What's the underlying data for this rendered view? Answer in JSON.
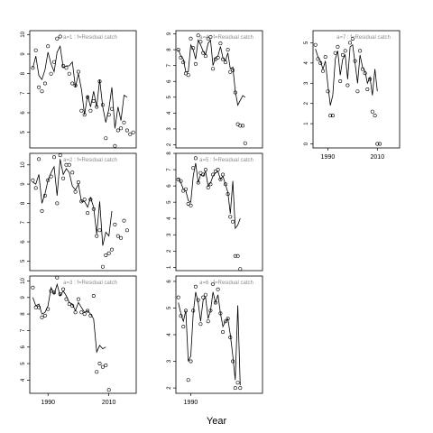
{
  "xlabel": "Year",
  "colors": {
    "axis": "#000000",
    "series": "#000000",
    "annotation": "#8c8c8c"
  },
  "chart_data": [
    {
      "type": "scatter",
      "label": "a=1 : f=Residual catch",
      "xlim": [
        1984,
        2019
      ],
      "ylim": [
        4.2,
        10.2
      ],
      "yticks": [
        5,
        6,
        7,
        8,
        9,
        10
      ],
      "xticks": [
        1990,
        2010
      ],
      "x": [
        1985,
        1986,
        1987,
        1988,
        1989,
        1990,
        1991,
        1992,
        1993,
        1994,
        1995,
        1996,
        1997,
        1998,
        1999,
        2000,
        2001,
        2002,
        2003,
        2004,
        2005,
        2006,
        2007,
        2008,
        2009,
        2010,
        2011,
        2012,
        2013,
        2014,
        2015,
        2016,
        2017,
        2018
      ],
      "points": [
        8.3,
        9.2,
        7.3,
        7.1,
        7.5,
        9.4,
        8.0,
        8.6,
        9.8,
        9.9,
        8.4,
        8.3,
        8.0,
        7.5,
        7.4,
        8.1,
        6.1,
        5.9,
        6.8,
        6.1,
        6.6,
        6.3,
        7.6,
        6.4,
        4.7,
        5.9,
        6.2,
        4.3,
        5.1,
        5.2,
        5.5,
        5.1,
        4.9,
        5.0
      ],
      "fitted": [
        8.3,
        8.9,
        7.9,
        7.7,
        8.2,
        9.1,
        8.5,
        8.1,
        9.1,
        9.4,
        8.3,
        8.4,
        8.4,
        8.6,
        7.3,
        8.0,
        7.2,
        5.9,
        6.9,
        6.3,
        7.1,
        6.3,
        7.7,
        6.3,
        5.5,
        6.2,
        7.3,
        5.2,
        6.3,
        5.6,
        6.9,
        6.8,
        null,
        null
      ]
    },
    {
      "type": "scatter",
      "label": "a=2 : f=Residual catch",
      "xlim": [
        1984,
        2019
      ],
      "ylim": [
        4.5,
        10.6
      ],
      "yticks": [
        5,
        6,
        7,
        8,
        9,
        10
      ],
      "xticks": [
        1990,
        2010
      ],
      "x": [
        1985,
        1986,
        1987,
        1988,
        1989,
        1990,
        1991,
        1992,
        1993,
        1994,
        1995,
        1996,
        1997,
        1998,
        1999,
        2000,
        2001,
        2002,
        2003,
        2004,
        2005,
        2006,
        2007,
        2008,
        2009,
        2010,
        2011,
        2012,
        2013,
        2014,
        2015,
        2016,
        2017,
        2018
      ],
      "points": [
        9.2,
        8.8,
        10.3,
        7.6,
        8.4,
        9.2,
        9.4,
        10.4,
        8.0,
        10.5,
        9.3,
        10.0,
        10.0,
        9.6,
        8.6,
        9.1,
        8.1,
        8.2,
        7.5,
        8.2,
        7.7,
        6.3,
        6.6,
        4.7,
        5.3,
        5.4,
        5.6,
        6.9,
        6.3,
        6.2,
        7.1,
        6.6,
        null,
        null
      ],
      "fitted": [
        9.1,
        9.0,
        9.5,
        8.0,
        8.5,
        9.2,
        9.6,
        9.9,
        8.4,
        10.3,
        9.5,
        9.8,
        9.6,
        8.9,
        8.7,
        9.0,
        8.1,
        8.1,
        7.8,
        8.3,
        7.8,
        6.4,
        8.1,
        5.8,
        6.5,
        6.3,
        7.6,
        null,
        null,
        null,
        null,
        null,
        null,
        null
      ]
    },
    {
      "type": "scatter",
      "label": "a=3 : f=Residual catch",
      "xlim": [
        1984,
        2019
      ],
      "ylim": [
        3.2,
        10.3
      ],
      "yticks": [
        4,
        5,
        6,
        7,
        8,
        9,
        10
      ],
      "xticks": [
        1990,
        2010
      ],
      "x": [
        1985,
        1986,
        1987,
        1988,
        1989,
        1990,
        1991,
        1992,
        1993,
        1994,
        1995,
        1996,
        1997,
        1998,
        1999,
        2000,
        2001,
        2002,
        2003,
        2004,
        2005,
        2006,
        2007,
        2008,
        2009,
        2010,
        2011,
        2012,
        2013,
        2014,
        2015,
        2016,
        2017,
        2018
      ],
      "points": [
        9.6,
        8.4,
        8.4,
        7.8,
        7.9,
        8.3,
        9.4,
        9.3,
        10.2,
        9.2,
        9.5,
        8.9,
        8.6,
        8.5,
        8.1,
        8.9,
        8.1,
        8.0,
        8.2,
        7.9,
        9.1,
        4.5,
        5.0,
        4.8,
        4.9,
        3.4,
        null,
        null,
        null,
        null,
        null,
        null,
        null,
        null
      ],
      "fitted": [
        9.0,
        8.5,
        8.6,
        8.0,
        8.1,
        8.5,
        9.6,
        9.2,
        9.8,
        9.1,
        9.4,
        9.1,
        8.7,
        8.6,
        8.2,
        8.7,
        8.4,
        8.1,
        8.2,
        8.0,
        7.7,
        5.7,
        6.1,
        5.9,
        6.0,
        null,
        null,
        null,
        null,
        null,
        null,
        null,
        null,
        null
      ]
    },
    {
      "type": "scatter",
      "label": "a=4 : f=Residual catch",
      "xlim": [
        1984,
        2019
      ],
      "ylim": [
        1.8,
        9.2
      ],
      "yticks": [
        2,
        3,
        4,
        5,
        6,
        7,
        8,
        9
      ],
      "xticks": [
        1990,
        2010
      ],
      "x": [
        1985,
        1986,
        1987,
        1988,
        1989,
        1990,
        1991,
        1992,
        1993,
        1994,
        1995,
        1996,
        1997,
        1998,
        1999,
        2000,
        2001,
        2002,
        2003,
        2004,
        2005,
        2006,
        2007,
        2008,
        2009,
        2010,
        2011,
        2012,
        2013,
        2014,
        2015,
        2016,
        2017,
        2018
      ],
      "points": [
        8.0,
        7.5,
        7.2,
        6.5,
        6.4,
        8.7,
        8.1,
        7.1,
        8.9,
        8.5,
        7.8,
        7.6,
        8.7,
        8.8,
        6.8,
        7.4,
        7.5,
        8.4,
        7.4,
        7.2,
        8.0,
        6.6,
        6.7,
        5.3,
        3.3,
        3.2,
        3.2,
        2.1,
        null,
        null,
        null,
        null,
        null,
        null
      ],
      "fitted": [
        8.0,
        7.6,
        7.4,
        6.6,
        6.6,
        8.3,
        8.0,
        7.4,
        8.6,
        8.3,
        7.9,
        7.7,
        8.4,
        8.6,
        7.0,
        7.5,
        7.6,
        8.2,
        7.5,
        7.3,
        7.8,
        6.8,
        6.9,
        5.4,
        4.5,
        4.8,
        5.1,
        5.0,
        null,
        null,
        null,
        null,
        null,
        null
      ]
    },
    {
      "type": "scatter",
      "label": "a=5 : f=Residual catch",
      "xlim": [
        1984,
        2019
      ],
      "ylim": [
        0.8,
        8.0
      ],
      "yticks": [
        1,
        2,
        3,
        4,
        5,
        6,
        7,
        8
      ],
      "xticks": [
        1990,
        2010
      ],
      "x": [
        1985,
        1986,
        1987,
        1988,
        1989,
        1990,
        1991,
        1992,
        1993,
        1994,
        1995,
        1996,
        1997,
        1998,
        1999,
        2000,
        2001,
        2002,
        2003,
        2004,
        2005,
        2006,
        2007,
        2008,
        2009,
        2010,
        2011,
        2012,
        2013,
        2014,
        2015,
        2016,
        2017,
        2018
      ],
      "points": [
        6.4,
        6.3,
        5.7,
        5.8,
        4.9,
        4.8,
        7.1,
        7.7,
        6.2,
        6.8,
        6.7,
        7.0,
        5.9,
        6.1,
        6.7,
        6.9,
        7.0,
        6.4,
        6.7,
        6.1,
        5.5,
        4.1,
        3.8,
        1.7,
        1.7,
        0.9,
        null,
        null,
        null,
        null,
        null,
        null,
        null,
        null
      ],
      "fitted": [
        6.5,
        6.2,
        5.8,
        5.7,
        5.1,
        5.0,
        6.6,
        7.4,
        6.2,
        6.7,
        6.6,
        6.9,
        6.0,
        6.2,
        6.6,
        6.8,
        6.9,
        6.4,
        6.6,
        6.1,
        5.6,
        4.3,
        6.3,
        3.4,
        3.6,
        4.0,
        null,
        null,
        null,
        null,
        null,
        null,
        null,
        null
      ]
    },
    {
      "type": "scatter",
      "label": "a=6 : f=Residual catch",
      "xlim": [
        1984,
        2019
      ],
      "ylim": [
        1.8,
        6.2
      ],
      "yticks": [
        2,
        3,
        4,
        5,
        6
      ],
      "xticks": [
        1990
      ],
      "x": [
        1985,
        1986,
        1987,
        1988,
        1989,
        1990,
        1991,
        1992,
        1993,
        1994,
        1995,
        1996,
        1997,
        1998,
        1999,
        2000,
        2001,
        2002,
        2003,
        2004,
        2005,
        2006,
        2007,
        2008,
        2009,
        2010,
        2011,
        2012,
        2013,
        2014,
        2015,
        2016,
        2017,
        2018
      ],
      "points": [
        5.4,
        4.7,
        4.3,
        4.9,
        2.3,
        3.0,
        4.9,
        5.8,
        5.3,
        4.4,
        5.4,
        5.5,
        4.5,
        4.9,
        5.9,
        5.2,
        5.7,
        4.8,
        4.1,
        4.5,
        4.6,
        3.9,
        3.0,
        2.0,
        2.2,
        2.0,
        null,
        null,
        null,
        null,
        null,
        null,
        null,
        null
      ],
      "fitted": [
        5.2,
        4.8,
        4.5,
        4.9,
        3.0,
        3.2,
        4.8,
        5.6,
        5.2,
        4.5,
        5.3,
        5.4,
        4.6,
        4.9,
        5.6,
        5.2,
        5.5,
        4.8,
        4.3,
        4.5,
        4.6,
        4.0,
        3.2,
        2.3,
        5.1,
        2.1,
        null,
        null,
        null,
        null,
        null,
        null,
        null,
        null
      ]
    },
    {
      "type": "scatter",
      "label": "a=7 : f=Residual catch",
      "xlim": [
        1984,
        2019
      ],
      "ylim": [
        -0.2,
        5.6
      ],
      "yticks": [
        0,
        1,
        2,
        3,
        4,
        5
      ],
      "xticks": [
        1990,
        2010
      ],
      "x": [
        1985,
        1986,
        1987,
        1988,
        1989,
        1990,
        1991,
        1992,
        1993,
        1994,
        1995,
        1996,
        1997,
        1998,
        1999,
        2000,
        2001,
        2002,
        2003,
        2004,
        2005,
        2006,
        2007,
        2008,
        2009,
        2010,
        2011,
        2012,
        2013,
        2014,
        2015,
        2016,
        2017,
        2018
      ],
      "points": [
        4.9,
        4.2,
        4.0,
        3.6,
        4.3,
        2.6,
        1.4,
        1.4,
        4.5,
        4.8,
        3.1,
        4.4,
        4.6,
        2.9,
        5.0,
        5.2,
        4.1,
        2.6,
        4.6,
        3.7,
        3.5,
        2.7,
        3.2,
        1.6,
        1.4,
        0.0,
        0.0,
        null,
        null,
        null,
        null,
        null,
        null,
        null
      ],
      "fitted": [
        4.7,
        4.3,
        4.1,
        3.7,
        4.1,
        2.9,
        1.9,
        2.4,
        4.2,
        4.6,
        3.4,
        4.2,
        4.4,
        3.2,
        4.8,
        4.9,
        4.0,
        3.0,
        4.4,
        3.8,
        3.6,
        3.0,
        3.3,
        2.4,
        3.7,
        2.6,
        null,
        null,
        null,
        null,
        null,
        null,
        null,
        null
      ]
    }
  ]
}
